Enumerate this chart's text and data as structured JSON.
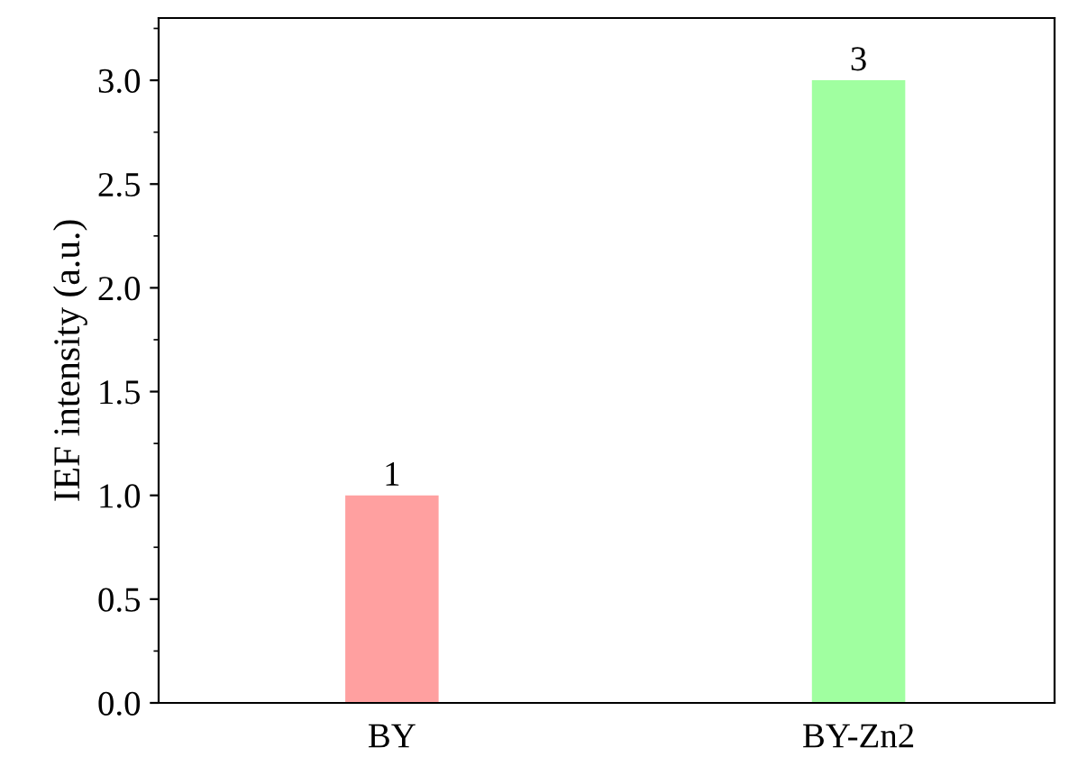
{
  "chart_data": {
    "type": "bar",
    "ylabel": "IEF intensity (a.u.)",
    "categories": [
      "BY",
      "BY-Zn2"
    ],
    "values": [
      1,
      3
    ],
    "colors": [
      "#ffa0a0",
      "#a0ffa0"
    ],
    "ylim": [
      0,
      3.3
    ],
    "yticks": [
      {
        "value": 0,
        "label": "0.0"
      },
      {
        "value": 0.5,
        "label": "0.5"
      },
      {
        "value": 1,
        "label": "1.0"
      },
      {
        "value": 1.5,
        "label": "1.5"
      },
      {
        "value": 2,
        "label": "2.0"
      },
      {
        "value": 2.5,
        "label": "2.5"
      },
      {
        "value": 3,
        "label": "3.0"
      }
    ],
    "data_labels": true,
    "grid": false,
    "legend": false
  }
}
